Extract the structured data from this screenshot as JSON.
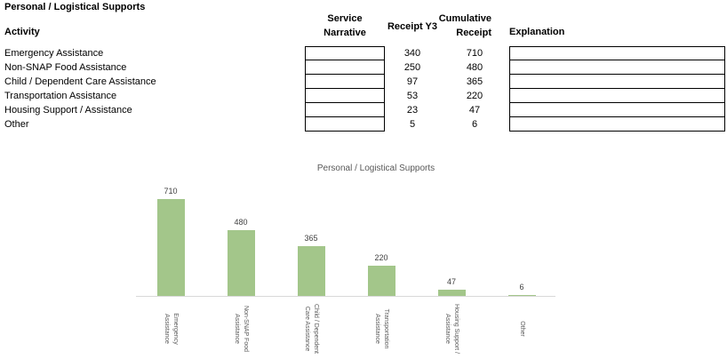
{
  "page": {
    "title": "Personal / Logistical Supports"
  },
  "table": {
    "headers": {
      "activity": "Activity",
      "service_narrative": "Service Narrative",
      "receipt_y3": "Receipt Y3",
      "cumulative_receipt": "Cumulative Receipt",
      "explanation": "Explanation"
    },
    "rows": [
      {
        "activity": "Emergency Assistance",
        "service_narrative": "",
        "receipt_y3": 340,
        "cumulative_receipt": 710,
        "explanation": ""
      },
      {
        "activity": "Non-SNAP Food Assistance",
        "service_narrative": "",
        "receipt_y3": 250,
        "cumulative_receipt": 480,
        "explanation": ""
      },
      {
        "activity": "Child / Dependent Care Assistance",
        "service_narrative": "",
        "receipt_y3": 97,
        "cumulative_receipt": 365,
        "explanation": ""
      },
      {
        "activity": "Transportation Assistance",
        "service_narrative": "",
        "receipt_y3": 53,
        "cumulative_receipt": 220,
        "explanation": ""
      },
      {
        "activity": "Housing Support / Assistance",
        "service_narrative": "",
        "receipt_y3": 23,
        "cumulative_receipt": 47,
        "explanation": ""
      },
      {
        "activity": "Other",
        "service_narrative": "",
        "receipt_y3": 5,
        "cumulative_receipt": 6,
        "explanation": ""
      }
    ]
  },
  "chart_data": {
    "type": "bar",
    "title": "Personal / Logistical Supports",
    "categories": [
      "Emergency Assistance",
      "Non-SNAP Food Assistance",
      "Child / Dependent Care Assistance",
      "Transportation Assistance",
      "Housing Support / Assistance",
      "Other"
    ],
    "values": [
      710,
      480,
      365,
      220,
      47,
      6
    ],
    "series_name": "Cumulative Receipt",
    "xlabel": "",
    "ylabel": "",
    "ylim": [
      0,
      710
    ],
    "grid": false,
    "legend": false,
    "data_labels_shown": true,
    "tick_label_rotation": 90,
    "bar_color": "#a3c68a",
    "axis_color": "#d9d9d9",
    "label_color": "#404040",
    "tick_color": "#595959"
  }
}
